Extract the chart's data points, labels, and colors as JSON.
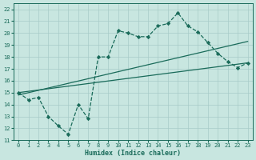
{
  "xlabel": "Humidex (Indice chaleur)",
  "ylabel": "",
  "xlim": [
    -0.5,
    23.5
  ],
  "ylim": [
    11,
    22.5
  ],
  "xticks": [
    0,
    1,
    2,
    3,
    4,
    5,
    6,
    7,
    8,
    9,
    10,
    11,
    12,
    13,
    14,
    15,
    16,
    17,
    18,
    19,
    20,
    21,
    22,
    23
  ],
  "yticks": [
    11,
    12,
    13,
    14,
    15,
    16,
    17,
    18,
    19,
    20,
    21,
    22
  ],
  "bg_color": "#c8e6e0",
  "grid_color": "#a8ccc8",
  "line_color": "#1a6b5a",
  "line1_x": [
    0,
    1,
    2,
    3,
    4,
    5,
    6,
    7,
    8,
    9,
    10,
    11,
    12,
    13,
    14,
    15,
    16,
    17,
    18,
    19,
    20,
    21,
    22,
    23
  ],
  "line1_y": [
    15,
    14.4,
    14.6,
    13,
    12.2,
    11.5,
    14.0,
    12.8,
    18.0,
    18.0,
    20.2,
    20.0,
    19.7,
    19.7,
    20.6,
    20.8,
    21.7,
    20.6,
    20.1,
    19.2,
    18.3,
    17.6,
    17.1,
    17.5
  ],
  "line2_x": [
    0,
    23
  ],
  "line2_y": [
    15.0,
    17.5
  ],
  "line3_x": [
    0,
    23
  ],
  "line3_y": [
    14.8,
    19.3
  ]
}
